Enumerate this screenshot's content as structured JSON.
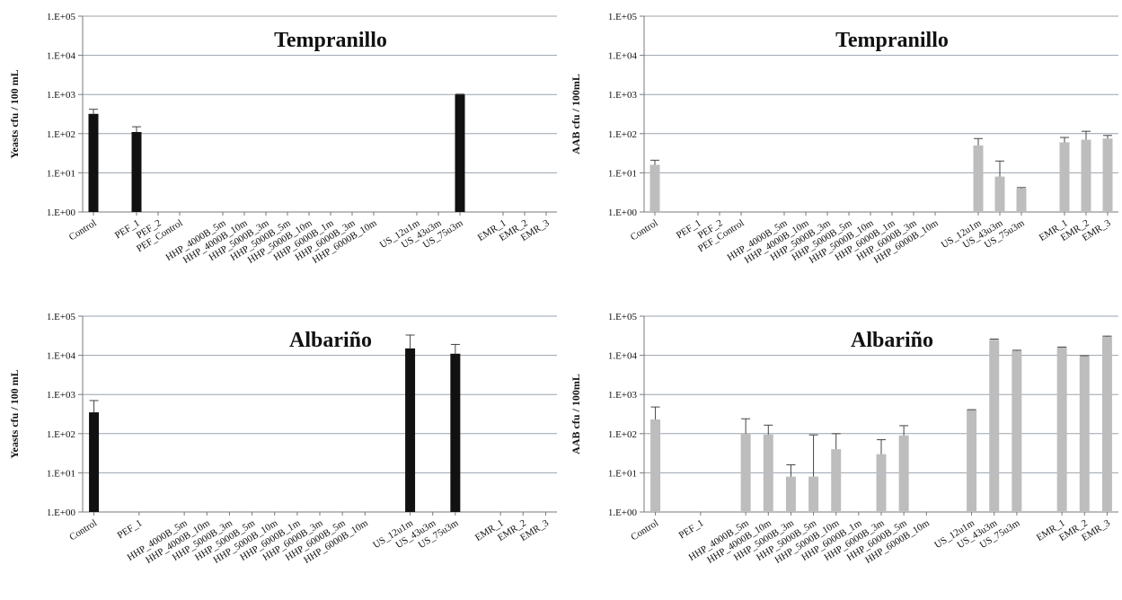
{
  "chart_data": [
    {
      "type": "bar",
      "title": "Tempranillo",
      "ylabel": "Yeasts cfu / 100 mL",
      "yscale": "log",
      "ylim": [
        1,
        100000
      ],
      "yticks": [
        "1.E+00",
        "1.E+01",
        "1.E+02",
        "1.E+03",
        "1.E+04",
        "1.E+05"
      ],
      "grid": true,
      "bar_color": "#111111",
      "categories": [
        "Control",
        "",
        "PEF_1",
        "PEF_2",
        "PEF_Control",
        "",
        "HHP_4000B_5m",
        "HHP_4000B_10m",
        "HHP_5000B_3m",
        "HHP_5000B_5m",
        "HHP_5000B_10m",
        "HHP_6000B_1m",
        "HHP_6000B_3m",
        "HHP_6000B_10m",
        "",
        "US_12u1m",
        "US_43u3m",
        "US_75u3m",
        "",
        "EMR_1",
        "EMR_2",
        "EMR_3"
      ],
      "values": [
        320,
        null,
        110,
        null,
        null,
        null,
        null,
        null,
        null,
        null,
        null,
        null,
        null,
        null,
        null,
        null,
        null,
        1000,
        null,
        null,
        null,
        null
      ],
      "errors": [
        100,
        null,
        40,
        null,
        null,
        null,
        null,
        null,
        null,
        null,
        null,
        null,
        null,
        null,
        null,
        null,
        null,
        20,
        null,
        null,
        null,
        null
      ]
    },
    {
      "type": "bar",
      "title": "Tempranillo",
      "ylabel": "AAB cfu / 100mL",
      "yscale": "log",
      "ylim": [
        1,
        100000
      ],
      "yticks": [
        "1.E+00",
        "1.E+01",
        "1.E+02",
        "1.E+03",
        "1.E+04",
        "1.E+05"
      ],
      "grid": true,
      "bar_color": "#bdbdbd",
      "categories": [
        "Control",
        "",
        "PEF_1",
        "PEF_2",
        "PEF_Control",
        "",
        "HHP_4000B_5m",
        "HHP_4000B_10m",
        "HHP_5000B_3m",
        "HHP_5000B_5m",
        "HHP_5000B_10m",
        "HHP_6000B_1m",
        "HHP_6000B_3m",
        "HHP_6000B_10m",
        "",
        "US_12u1m",
        "US_43u3m",
        "US_75u3m",
        "",
        "EMR_1",
        "EMR_2",
        "EMR_3"
      ],
      "values": [
        16,
        null,
        null,
        null,
        null,
        null,
        null,
        null,
        null,
        null,
        null,
        null,
        null,
        null,
        null,
        50,
        8,
        4,
        null,
        60,
        70,
        75
      ],
      "errors": [
        5,
        null,
        null,
        null,
        null,
        null,
        null,
        null,
        null,
        null,
        null,
        null,
        null,
        null,
        null,
        25,
        12,
        0.2,
        null,
        20,
        45,
        15
      ]
    },
    {
      "type": "bar",
      "title": "Albariño",
      "ylabel": "Yeasts cfu / 100 mL",
      "yscale": "log",
      "ylim": [
        1,
        100000
      ],
      "yticks": [
        "1.E+00",
        "1.E+01",
        "1.E+02",
        "1.E+03",
        "1.E+04",
        "1.E+05"
      ],
      "grid": true,
      "bar_color": "#111111",
      "categories": [
        "Control",
        "",
        "PEF_1",
        "",
        "HHP_4000B_5m",
        "HHP_4000B_10m",
        "HHP_5000B_3m",
        "HHP_5000B_5m",
        "HHP_5000B_10m",
        "HHP_6000B_1m",
        "HHP_6000B_3m",
        "HHP_6000B_5m",
        "HHP_6000B_10m",
        "",
        "US_12u1m",
        "US_43u3m",
        "US_75u3m",
        "",
        "EMR_1",
        "EMR_2",
        "EMR_3"
      ],
      "values": [
        350,
        null,
        null,
        null,
        null,
        null,
        null,
        null,
        null,
        null,
        null,
        null,
        null,
        null,
        15000,
        null,
        11000,
        null,
        null,
        null,
        null
      ],
      "errors": [
        350,
        null,
        null,
        null,
        null,
        null,
        null,
        null,
        null,
        null,
        null,
        null,
        null,
        null,
        18000,
        null,
        8000,
        null,
        null,
        null,
        null
      ]
    },
    {
      "type": "bar",
      "title": "Albariño",
      "ylabel": "AAB cfu / 100mL",
      "yscale": "log",
      "ylim": [
        1,
        100000
      ],
      "yticks": [
        "1.E+00",
        "1.E+01",
        "1.E+02",
        "1.E+03",
        "1.E+04",
        "1.E+05"
      ],
      "grid": true,
      "bar_color": "#bdbdbd",
      "categories": [
        "Control",
        "",
        "PEF_1",
        "",
        "HHP_4000B_5m",
        "HHP_4000B_10m",
        "HHP_5000B_3m",
        "HHP_5000B_5m",
        "HHP_5000B_10m",
        "HHP_6000B_1m",
        "HHP_6000B_3m",
        "HHP_6000B_5m",
        "HHP_6000B_10m",
        "",
        "US_12u1m",
        "US_43u3m",
        "US_75u3m",
        "",
        "EMR_1",
        "EMR_2",
        "EMR_3"
      ],
      "values": [
        230,
        null,
        null,
        null,
        100,
        95,
        8,
        8,
        40,
        null,
        30,
        90,
        null,
        null,
        400,
        25000,
        13000,
        null,
        16000,
        9500,
        30000
      ],
      "errors": [
        250,
        null,
        null,
        null,
        140,
        70,
        8,
        85,
        60,
        null,
        40,
        70,
        null,
        null,
        10,
        1000,
        500,
        null,
        300,
        300,
        1000
      ]
    }
  ]
}
